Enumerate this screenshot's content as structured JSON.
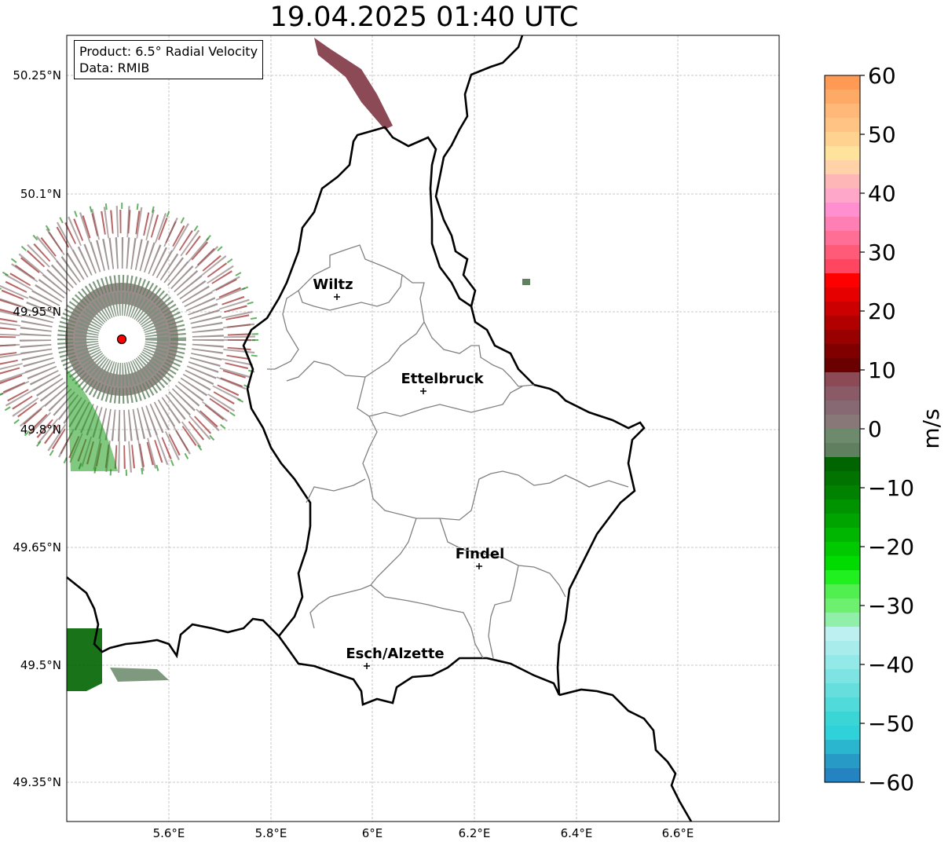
{
  "title": "19.04.2025 01:40 UTC",
  "info": {
    "product": "Product: 6.5° Radial Velocity",
    "data": "Data: RMIB"
  },
  "lat_ticks": [
    "50.25°N",
    "50.1°N",
    "49.95°N",
    "49.8°N",
    "49.65°N",
    "49.5°N",
    "49.35°N"
  ],
  "lon_ticks": [
    "5.6°E",
    "5.8°E",
    "6°E",
    "6.2°E",
    "6.4°E",
    "6.6°E"
  ],
  "cities": [
    {
      "name": "Wiltz"
    },
    {
      "name": "Ettelbruck"
    },
    {
      "name": "Findel"
    },
    {
      "name": "Esch/Alzette"
    }
  ],
  "colorbar": {
    "unit": "m/s",
    "tick_labels": [
      "60",
      "50",
      "40",
      "30",
      "20",
      "10",
      "0",
      "−10",
      "−20",
      "−30",
      "−40",
      "−50",
      "−60"
    ],
    "range": [
      -60,
      60
    ]
  },
  "radar_site_color": "#ff0000"
}
